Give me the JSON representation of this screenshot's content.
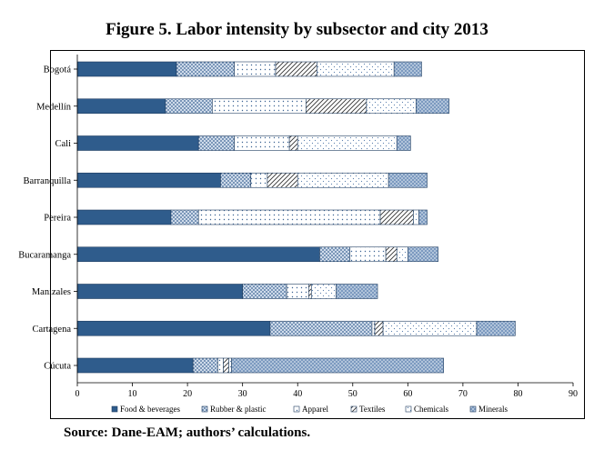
{
  "title": "Figure 5. Labor intensity by subsector and city 2013",
  "source": "Source: Dane-EAM; authors’ calculations.",
  "chart_data": {
    "type": "bar",
    "orientation": "horizontal",
    "stacked": true,
    "title": "Figure 5. Labor intensity by subsector and city 2013",
    "xlabel": "",
    "ylabel": "",
    "xlim": [
      0,
      90
    ],
    "xticks": [
      0,
      10,
      20,
      30,
      40,
      50,
      60,
      70,
      80,
      90
    ],
    "legend_position": "bottom",
    "categories": [
      "Bogotá",
      "Medellín",
      "Cali",
      "Barranquilla",
      "Pereira",
      "Bucaramanga",
      "Manizales",
      "Cartagena",
      "Cúcuta"
    ],
    "series": [
      {
        "name": "Food & beverages",
        "color": "#2f5c8c",
        "pattern": "solid",
        "values": [
          18,
          16,
          22,
          26,
          17,
          44,
          30,
          35,
          21
        ]
      },
      {
        "name": "Rubber & plastic",
        "color": "#5a7fae",
        "pattern": "dots",
        "values": [
          10.5,
          8.5,
          6.5,
          5.5,
          5,
          5.5,
          8,
          18.5,
          4.5
        ]
      },
      {
        "name": "Apparel",
        "color": "#5a7fae",
        "pattern": "dotsparse",
        "values": [
          7.5,
          17,
          10,
          3,
          33,
          6.5,
          4,
          0.5,
          1
        ]
      },
      {
        "name": "Textiles",
        "color": "#333333",
        "pattern": "hatch",
        "values": [
          7.5,
          11,
          1.5,
          5.5,
          6,
          2,
          0.5,
          1.5,
          1
        ]
      },
      {
        "name": "Chemicals",
        "color": "#5a7fae",
        "pattern": "dotsparse2",
        "values": [
          14,
          9,
          18,
          16.5,
          1,
          2,
          4.5,
          17,
          0.5
        ]
      },
      {
        "name": "Minerals",
        "color": "#5a7fae",
        "pattern": "crosshatch",
        "values": [
          5,
          6,
          2.5,
          7,
          1.5,
          5.5,
          7.5,
          7,
          38.5
        ]
      }
    ]
  }
}
